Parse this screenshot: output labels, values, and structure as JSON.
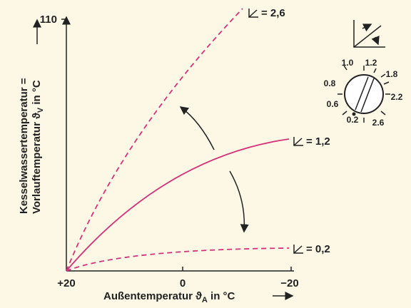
{
  "axes": {
    "y_label_line1": "Kesselwassertemperatur =",
    "y_label_line2": "Vorlauftemperatur ϑ",
    "y_label_sub": "V",
    "y_label_unit": " in °C",
    "y_max": "110",
    "x_ticks": [
      "+20",
      "0",
      "−20"
    ],
    "x_label": "Außentemperatur ϑ",
    "x_label_sub": "A",
    "x_label_unit": " in °C"
  },
  "curves": [
    {
      "label": "= 2,6"
    },
    {
      "label": "= 1,2"
    },
    {
      "label": "= 0,2"
    }
  ],
  "dial": {
    "labels": [
      "1.0",
      "1.2",
      "1.8",
      "2.2",
      "2.6",
      "0.2",
      "0.6",
      "0.8"
    ]
  }
}
